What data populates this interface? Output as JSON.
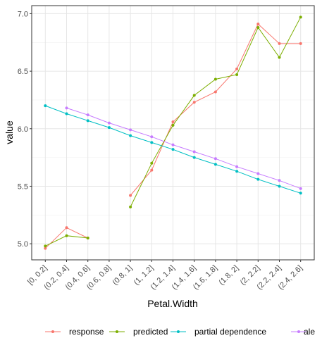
{
  "chart_data": {
    "type": "line",
    "xlabel": "Petal.Width",
    "ylabel": "value",
    "categories": [
      "[0, 0.2]",
      "(0.2, 0.4]",
      "(0.4, 0.6]",
      "(0.6, 0.8]",
      "(0.8, 1]",
      "(1, 1.2]",
      "(1.2, 1.4]",
      "(1.4, 1.6]",
      "(1.6, 1.8]",
      "(1.8, 2]",
      "(2, 2.2]",
      "(2.2, 2.4]",
      "(2.4, 2.6]"
    ],
    "ylim": [
      4.86,
      7.07
    ],
    "yticks": [
      5.0,
      5.5,
      6.0,
      6.5,
      7.0
    ],
    "ytick_labels": [
      "5.0",
      "5.5",
      "6.0",
      "6.5",
      "7.0"
    ],
    "grid": true,
    "legend_position": "bottom",
    "series": [
      {
        "name": "response",
        "color": "#F8766D",
        "values": [
          4.96,
          5.14,
          5.05,
          null,
          5.42,
          5.64,
          6.06,
          6.23,
          6.32,
          6.52,
          6.91,
          6.74,
          6.74
        ]
      },
      {
        "name": "predicted",
        "color": "#7CAE00",
        "values": [
          4.98,
          5.07,
          5.05,
          null,
          5.32,
          5.7,
          6.03,
          6.29,
          6.43,
          6.47,
          6.88,
          6.62,
          6.97
        ]
      },
      {
        "name": "partial dependence",
        "color": "#00BFC4",
        "values": [
          6.2,
          6.13,
          6.07,
          6.01,
          5.94,
          5.88,
          5.82,
          5.75,
          5.69,
          5.63,
          5.56,
          5.5,
          5.44
        ]
      },
      {
        "name": "ale",
        "color": "#C77CFF",
        "values": [
          null,
          6.18,
          6.12,
          6.05,
          5.99,
          5.93,
          5.86,
          5.8,
          5.74,
          5.67,
          5.61,
          5.55,
          5.48
        ]
      }
    ]
  }
}
